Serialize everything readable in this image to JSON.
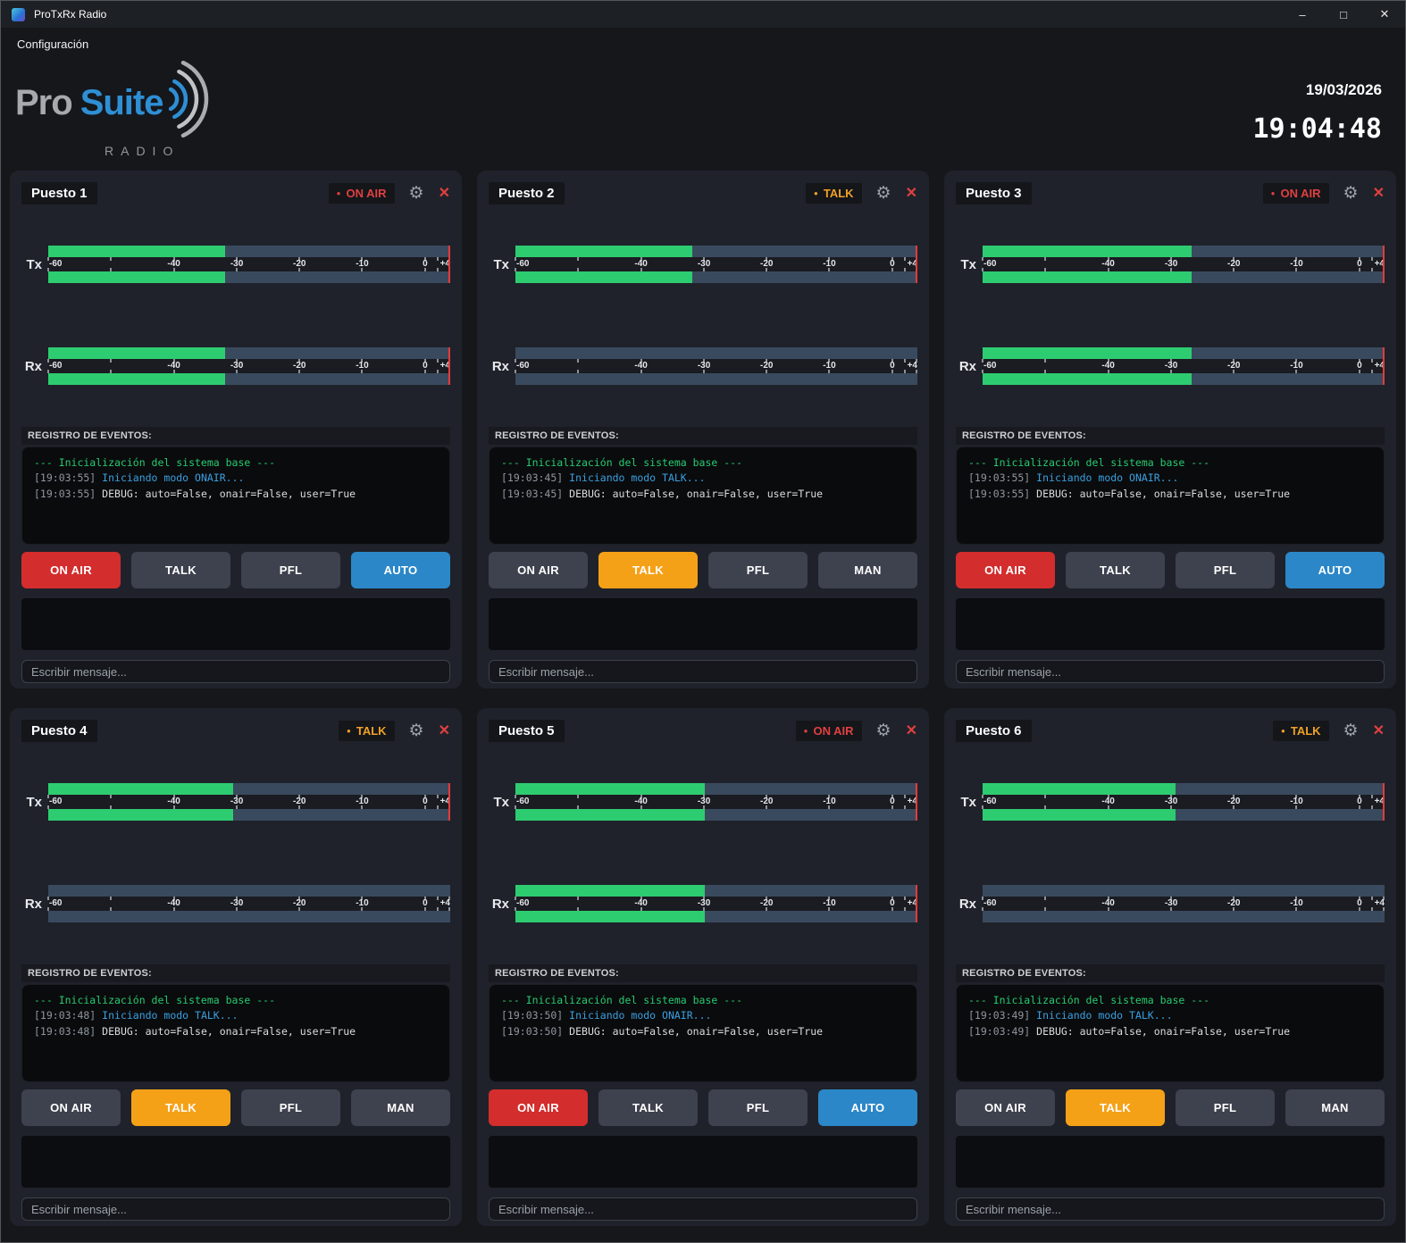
{
  "titlebar": {
    "app_title": "ProTxRx Radio",
    "minimize_glyph": "–",
    "maximize_glyph": "□",
    "close_glyph": "✕"
  },
  "menubar": {
    "config_label": "Configuración"
  },
  "header": {
    "logo": {
      "pro": "Pro",
      "suite": "Suite",
      "radio": "RADIO"
    },
    "date": "19/03/2026",
    "clock": "19:04:48"
  },
  "meter_scale": {
    "min_db": -60,
    "max_db": 4,
    "labels": [
      {
        "text": "-60",
        "pct": 0,
        "align": "left"
      },
      {
        "text": "-40",
        "pct": 31.25,
        "align": "center"
      },
      {
        "text": "-30",
        "pct": 46.9,
        "align": "center"
      },
      {
        "text": "-20",
        "pct": 62.5,
        "align": "center"
      },
      {
        "text": "-10",
        "pct": 78.1,
        "align": "center"
      },
      {
        "text": "0",
        "pct": 93.75,
        "align": "center"
      },
      {
        "text": "+4",
        "pct": 100,
        "align": "right"
      }
    ],
    "tick_pcts": [
      0,
      15.625,
      31.25,
      46.9,
      62.5,
      78.1,
      93.75,
      96.875,
      100
    ]
  },
  "colors": {
    "meter_green": "#2ecc71",
    "meter_track": "#3a4a5e",
    "peak_red": "#e23b3b",
    "button_onair_red": "#d32d2d",
    "button_talk_orange": "#f5a118",
    "button_auto_blue": "#2b87c8",
    "button_idle": "#3e424e",
    "status_onair": "#e04040",
    "status_talk": "#f0a125"
  },
  "panels": [
    {
      "name": "Puesto 1",
      "status": {
        "text": "ON AIR",
        "type": "onair",
        "dot": "●"
      },
      "meters": {
        "tx": {
          "label": "Tx",
          "level_pct": 44,
          "peak": true
        },
        "rx": {
          "label": "Rx",
          "level_pct": 44,
          "peak": true
        }
      },
      "log_title": "REGISTRO DE EVENTOS:",
      "log_lines": [
        {
          "segments": [
            {
              "text": "--- Inicialización del sistema base ---",
              "color": "green"
            }
          ]
        },
        {
          "segments": [
            {
              "text": "[19:03:55] ",
              "color": "gray"
            },
            {
              "text": "Iniciando modo ONAIR...",
              "color": "blue"
            }
          ]
        },
        {
          "segments": [
            {
              "text": "[19:03:55] ",
              "color": "gray"
            },
            {
              "text": "DEBUG: auto=False, onair=False, user=True",
              "color": "white"
            }
          ]
        }
      ],
      "buttons": [
        {
          "label": "ON AIR",
          "state": "onair"
        },
        {
          "label": "TALK",
          "state": "idle"
        },
        {
          "label": "PFL",
          "state": "idle"
        },
        {
          "label": "AUTO",
          "state": "auto"
        }
      ],
      "message_placeholder": "Escribir mensaje..."
    },
    {
      "name": "Puesto 2",
      "status": {
        "text": "TALK",
        "type": "talk",
        "dot": "●"
      },
      "meters": {
        "tx": {
          "label": "Tx",
          "level_pct": 44,
          "peak": true
        },
        "rx": {
          "label": "Rx",
          "level_pct": 0,
          "peak": false
        }
      },
      "log_title": "REGISTRO DE EVENTOS:",
      "log_lines": [
        {
          "segments": [
            {
              "text": "--- Inicialización del sistema base ---",
              "color": "green"
            }
          ]
        },
        {
          "segments": [
            {
              "text": "[19:03:45] ",
              "color": "gray"
            },
            {
              "text": "Iniciando modo TALK...",
              "color": "blue"
            }
          ]
        },
        {
          "segments": [
            {
              "text": "[19:03:45] ",
              "color": "gray"
            },
            {
              "text": "DEBUG: auto=False, onair=False, user=True",
              "color": "white"
            }
          ]
        }
      ],
      "buttons": [
        {
          "label": "ON AIR",
          "state": "idle"
        },
        {
          "label": "TALK",
          "state": "talk"
        },
        {
          "label": "PFL",
          "state": "idle"
        },
        {
          "label": "MAN",
          "state": "idle"
        }
      ],
      "message_placeholder": "Escribir mensaje..."
    },
    {
      "name": "Puesto 3",
      "status": {
        "text": "ON AIR",
        "type": "onair",
        "dot": "●"
      },
      "meters": {
        "tx": {
          "label": "Tx",
          "level_pct": 52,
          "peak": true
        },
        "rx": {
          "label": "Rx",
          "level_pct": 52,
          "peak": true
        }
      },
      "log_title": "REGISTRO DE EVENTOS:",
      "log_lines": [
        {
          "segments": [
            {
              "text": "--- Inicialización del sistema base ---",
              "color": "green"
            }
          ]
        },
        {
          "segments": [
            {
              "text": "[19:03:55] ",
              "color": "gray"
            },
            {
              "text": "Iniciando modo ONAIR...",
              "color": "blue"
            }
          ]
        },
        {
          "segments": [
            {
              "text": "[19:03:55] ",
              "color": "gray"
            },
            {
              "text": "DEBUG: auto=False, onair=False, user=True",
              "color": "white"
            }
          ]
        }
      ],
      "buttons": [
        {
          "label": "ON AIR",
          "state": "onair"
        },
        {
          "label": "TALK",
          "state": "idle"
        },
        {
          "label": "PFL",
          "state": "idle"
        },
        {
          "label": "AUTO",
          "state": "auto"
        }
      ],
      "message_placeholder": "Escribir mensaje..."
    },
    {
      "name": "Puesto 4",
      "status": {
        "text": "TALK",
        "type": "talk",
        "dot": "●"
      },
      "meters": {
        "tx": {
          "label": "Tx",
          "level_pct": 46,
          "peak": true
        },
        "rx": {
          "label": "Rx",
          "level_pct": 0,
          "peak": false
        }
      },
      "log_title": "REGISTRO DE EVENTOS:",
      "log_lines": [
        {
          "segments": [
            {
              "text": "--- Inicialización del sistema base ---",
              "color": "green"
            }
          ]
        },
        {
          "segments": [
            {
              "text": "[19:03:48] ",
              "color": "gray"
            },
            {
              "text": "Iniciando modo TALK...",
              "color": "blue"
            }
          ]
        },
        {
          "segments": [
            {
              "text": "[19:03:48] ",
              "color": "gray"
            },
            {
              "text": "DEBUG: auto=False, onair=False, user=True",
              "color": "white"
            }
          ]
        }
      ],
      "buttons": [
        {
          "label": "ON AIR",
          "state": "idle"
        },
        {
          "label": "TALK",
          "state": "talk"
        },
        {
          "label": "PFL",
          "state": "idle"
        },
        {
          "label": "MAN",
          "state": "idle"
        }
      ],
      "message_placeholder": "Escribir mensaje..."
    },
    {
      "name": "Puesto 5",
      "status": {
        "text": "ON AIR",
        "type": "onair",
        "dot": "●"
      },
      "meters": {
        "tx": {
          "label": "Tx",
          "level_pct": 47,
          "peak": true
        },
        "rx": {
          "label": "Rx",
          "level_pct": 47,
          "peak": true
        }
      },
      "log_title": "REGISTRO DE EVENTOS:",
      "log_lines": [
        {
          "segments": [
            {
              "text": "--- Inicialización del sistema base ---",
              "color": "green"
            }
          ]
        },
        {
          "segments": [
            {
              "text": "[19:03:50] ",
              "color": "gray"
            },
            {
              "text": "Iniciando modo ONAIR...",
              "color": "blue"
            }
          ]
        },
        {
          "segments": [
            {
              "text": "[19:03:50] ",
              "color": "gray"
            },
            {
              "text": "DEBUG: auto=False, onair=False, user=True",
              "color": "white"
            }
          ]
        }
      ],
      "buttons": [
        {
          "label": "ON AIR",
          "state": "onair"
        },
        {
          "label": "TALK",
          "state": "idle"
        },
        {
          "label": "PFL",
          "state": "idle"
        },
        {
          "label": "AUTO",
          "state": "auto"
        }
      ],
      "message_placeholder": "Escribir mensaje..."
    },
    {
      "name": "Puesto 6",
      "status": {
        "text": "TALK",
        "type": "talk",
        "dot": "●"
      },
      "meters": {
        "tx": {
          "label": "Tx",
          "level_pct": 48,
          "peak": true
        },
        "rx": {
          "label": "Rx",
          "level_pct": 0,
          "peak": false
        }
      },
      "log_title": "REGISTRO DE EVENTOS:",
      "log_lines": [
        {
          "segments": [
            {
              "text": "--- Inicialización del sistema base ---",
              "color": "green"
            }
          ]
        },
        {
          "segments": [
            {
              "text": "[19:03:49] ",
              "color": "gray"
            },
            {
              "text": "Iniciando modo TALK...",
              "color": "blue"
            }
          ]
        },
        {
          "segments": [
            {
              "text": "[19:03:49] ",
              "color": "gray"
            },
            {
              "text": "DEBUG: auto=False, onair=False, user=True",
              "color": "white"
            }
          ]
        }
      ],
      "buttons": [
        {
          "label": "ON AIR",
          "state": "idle"
        },
        {
          "label": "TALK",
          "state": "talk"
        },
        {
          "label": "PFL",
          "state": "idle"
        },
        {
          "label": "MAN",
          "state": "idle"
        }
      ],
      "message_placeholder": "Escribir mensaje..."
    }
  ]
}
